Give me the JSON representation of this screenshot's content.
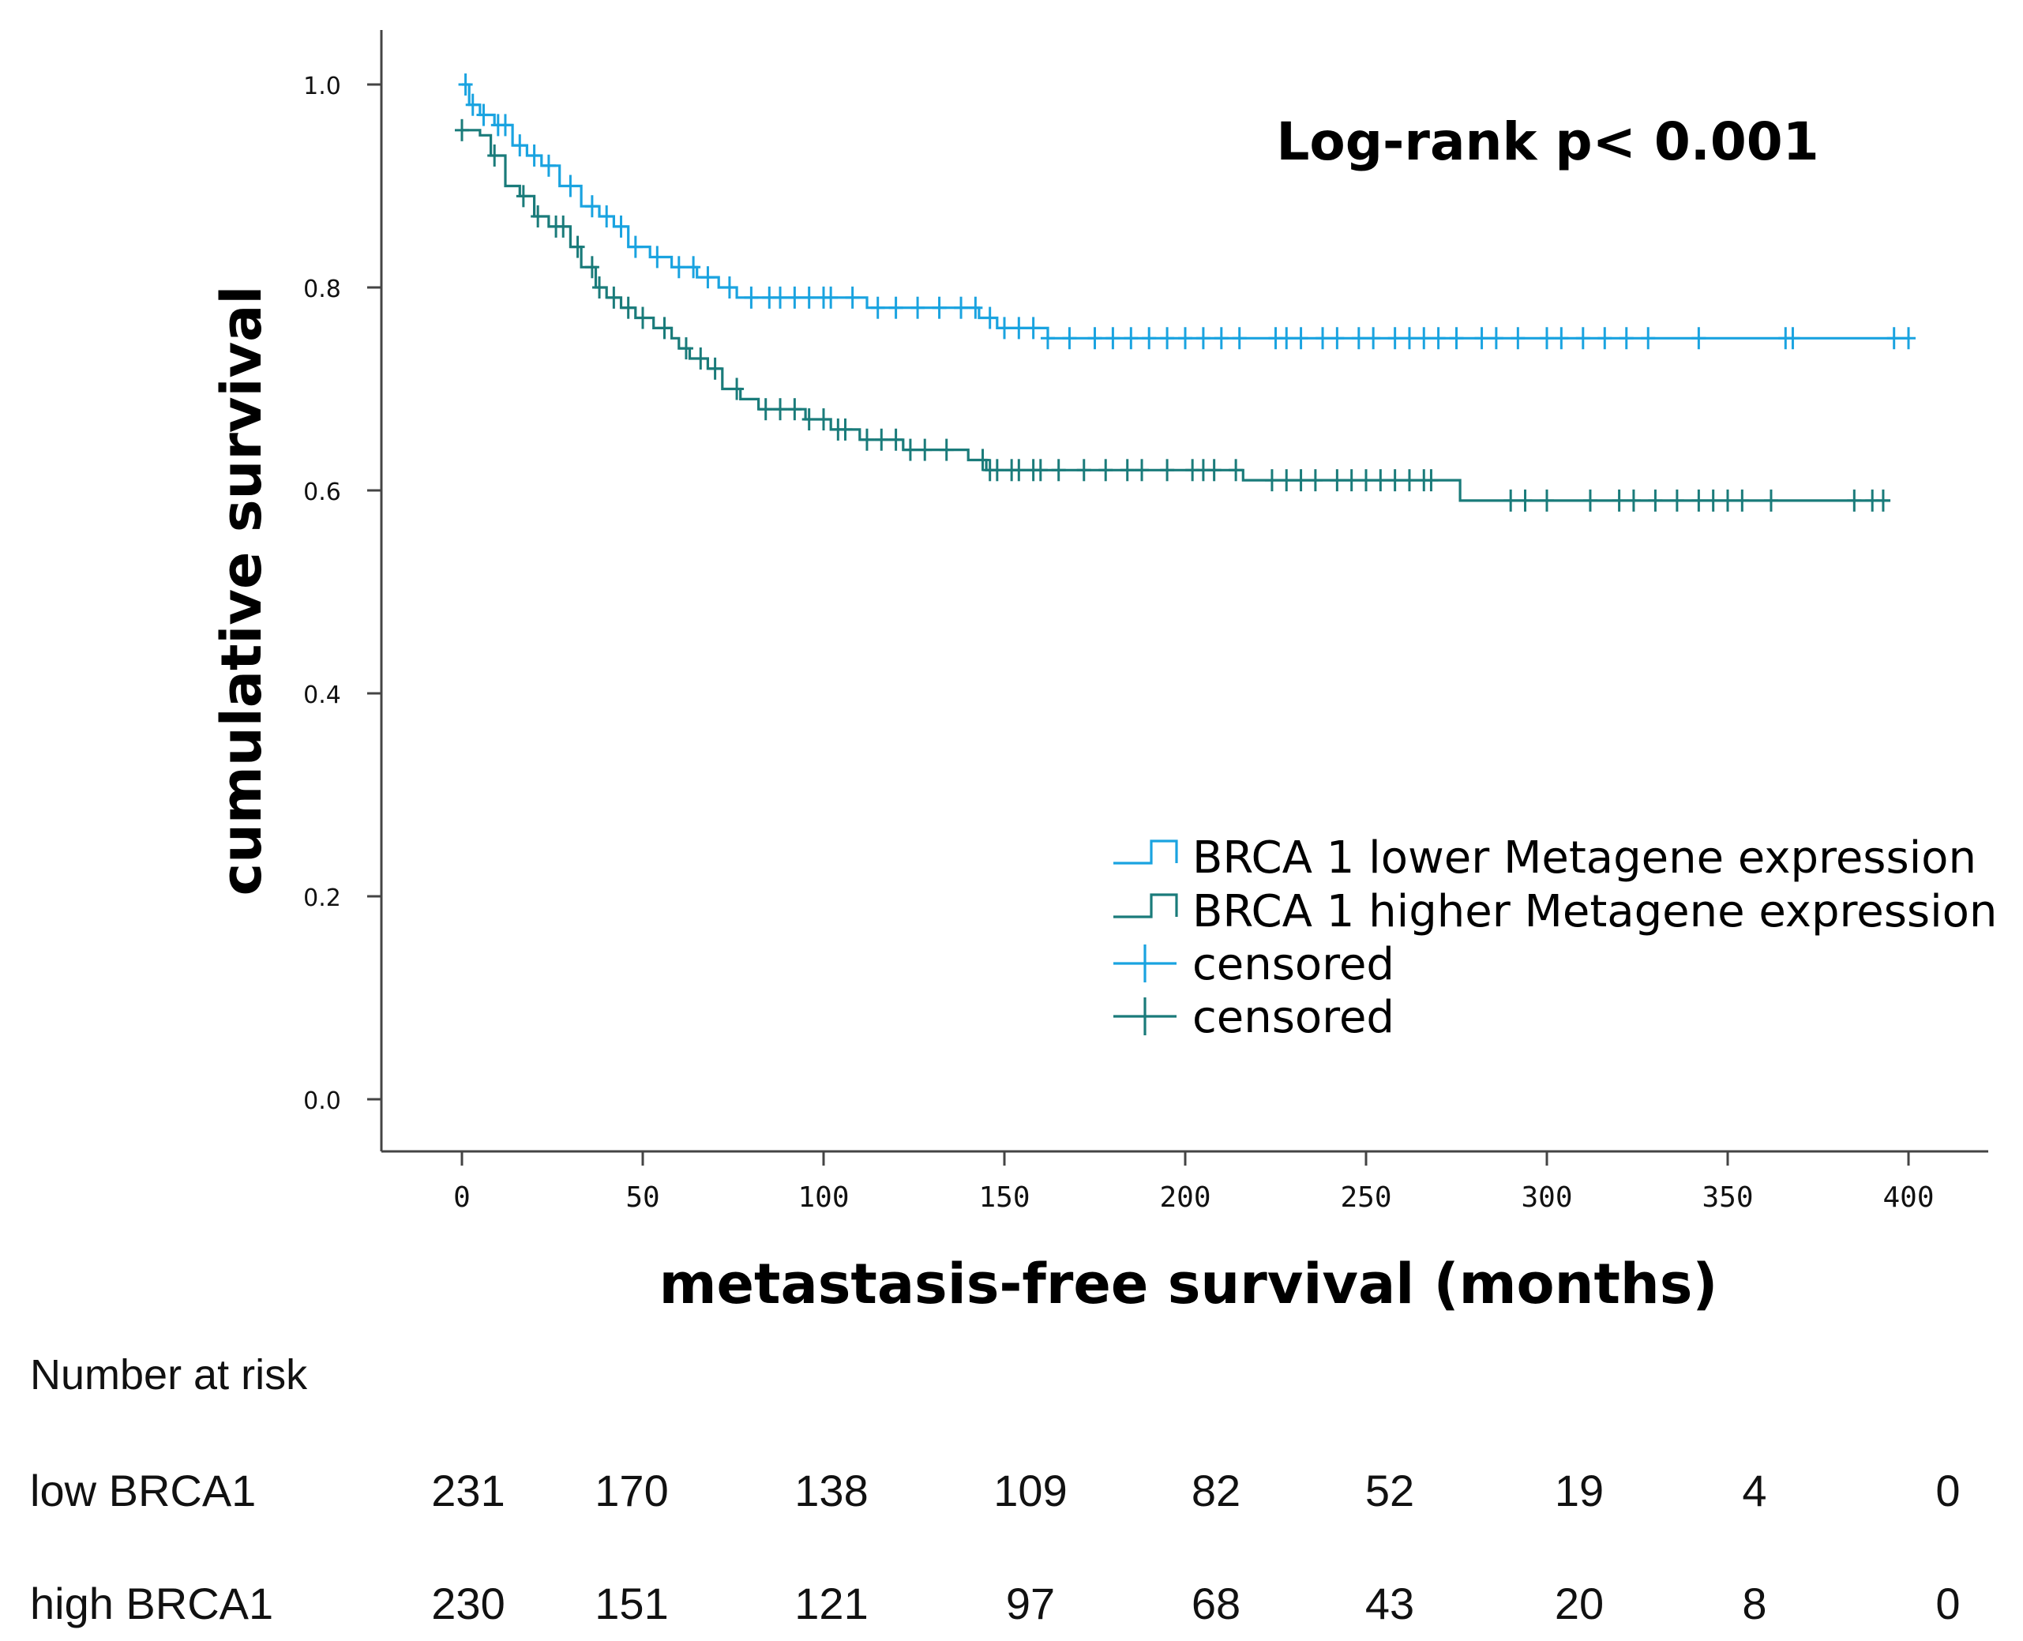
{
  "chart_data": {
    "type": "line",
    "subtype": "kaplan-meier step",
    "title": "",
    "annotation": "Log-rank p< 0.001",
    "xlabel": "metastasis-free survival (months)",
    "ylabel": "cumulative survival",
    "xlim": [
      -20,
      422
    ],
    "ylim": [
      -0.06,
      1.06
    ],
    "xticks": [
      0,
      50,
      100,
      150,
      200,
      250,
      300,
      350,
      400
    ],
    "yticks": [
      0.0,
      0.2,
      0.4,
      0.6,
      0.8,
      1.0
    ],
    "ytick_labels": [
      "0.0",
      "0.2",
      "0.4",
      "0.6",
      "0.8",
      "1.0"
    ],
    "legend_position": "lower-right",
    "series": [
      {
        "name": "BRCA 1 lower Metagene expression",
        "censored_label": "censored",
        "color": "#1aa3e0",
        "steps": [
          [
            0,
            1.0
          ],
          [
            2,
            0.98
          ],
          [
            5,
            0.97
          ],
          [
            9,
            0.96
          ],
          [
            14,
            0.94
          ],
          [
            18,
            0.93
          ],
          [
            22,
            0.92
          ],
          [
            27,
            0.9
          ],
          [
            33,
            0.88
          ],
          [
            38,
            0.87
          ],
          [
            42,
            0.86
          ],
          [
            46,
            0.84
          ],
          [
            52,
            0.83
          ],
          [
            58,
            0.82
          ],
          [
            65,
            0.81
          ],
          [
            71,
            0.8
          ],
          [
            76,
            0.79
          ],
          [
            105,
            0.79
          ],
          [
            112,
            0.78
          ],
          [
            140,
            0.78
          ],
          [
            143,
            0.77
          ],
          [
            148,
            0.76
          ],
          [
            155,
            0.76
          ],
          [
            162,
            0.75
          ],
          [
            400,
            0.75
          ]
        ],
        "censored": [
          1,
          3,
          6,
          10,
          12,
          16,
          20,
          24,
          30,
          36,
          40,
          44,
          48,
          54,
          60,
          64,
          68,
          74,
          80,
          85,
          88,
          92,
          96,
          100,
          102,
          108,
          115,
          120,
          126,
          132,
          138,
          142,
          146,
          150,
          154,
          158,
          162,
          168,
          175,
          180,
          185,
          190,
          195,
          200,
          205,
          210,
          215,
          225,
          228,
          232,
          238,
          242,
          248,
          252,
          258,
          262,
          266,
          270,
          275,
          282,
          286,
          292,
          300,
          304,
          310,
          316,
          322,
          328,
          342,
          366,
          368,
          396,
          400
        ]
      },
      {
        "name": "BRCA 1 higher Metagene expression",
        "censored_label": "censored",
        "color": "#1a7b7a",
        "steps": [
          [
            0,
            0.955
          ],
          [
            5,
            0.95
          ],
          [
            8,
            0.93
          ],
          [
            12,
            0.9
          ],
          [
            16,
            0.89
          ],
          [
            20,
            0.87
          ],
          [
            24,
            0.86
          ],
          [
            30,
            0.84
          ],
          [
            33,
            0.82
          ],
          [
            37,
            0.8
          ],
          [
            40,
            0.79
          ],
          [
            44,
            0.78
          ],
          [
            48,
            0.77
          ],
          [
            53,
            0.76
          ],
          [
            58,
            0.75
          ],
          [
            60,
            0.74
          ],
          [
            63,
            0.73
          ],
          [
            68,
            0.72
          ],
          [
            72,
            0.7
          ],
          [
            77,
            0.69
          ],
          [
            82,
            0.68
          ],
          [
            90,
            0.68
          ],
          [
            95,
            0.67
          ],
          [
            102,
            0.66
          ],
          [
            110,
            0.65
          ],
          [
            118,
            0.65
          ],
          [
            122,
            0.64
          ],
          [
            132,
            0.64
          ],
          [
            140,
            0.63
          ],
          [
            145,
            0.62
          ],
          [
            214,
            0.62
          ],
          [
            216,
            0.61
          ],
          [
            275,
            0.61
          ],
          [
            276,
            0.59
          ],
          [
            395,
            0.59
          ]
        ],
        "censored": [
          0,
          9,
          17,
          21,
          26,
          28,
          32,
          36,
          38,
          42,
          46,
          50,
          56,
          62,
          66,
          70,
          76,
          84,
          88,
          92,
          96,
          100,
          104,
          106,
          112,
          116,
          120,
          124,
          128,
          134,
          144,
          146,
          148,
          152,
          154,
          158,
          160,
          165,
          172,
          178,
          184,
          188,
          195,
          202,
          205,
          208,
          214,
          224,
          228,
          232,
          236,
          242,
          246,
          250,
          254,
          258,
          262,
          266,
          268,
          290,
          294,
          300,
          312,
          320,
          324,
          330,
          336,
          342,
          346,
          350,
          354,
          362,
          385,
          390,
          393
        ]
      }
    ],
    "risk_table": {
      "title": "Number at risk",
      "rows": [
        {
          "label": "low BRCA1",
          "values": [
            "231",
            "170",
            "138",
            "109",
            "82",
            "52",
            "19",
            "4",
            "0"
          ]
        },
        {
          "label": "high BRCA1",
          "values": [
            "230",
            "151",
            "121",
            "97",
            "68",
            "43",
            "20",
            "8",
            "0"
          ]
        }
      ]
    }
  }
}
